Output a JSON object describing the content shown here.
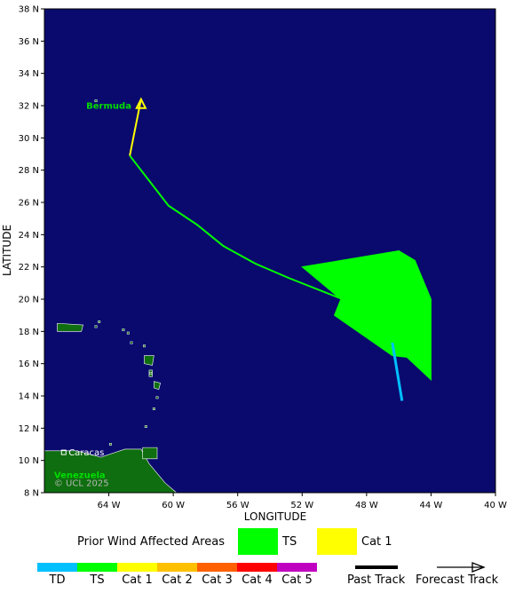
{
  "map": {
    "ocean_color": "#0a0a6e",
    "land_color": "#0f6e0f",
    "land_outline": "#ffffff",
    "lat_ticks": [
      "38 N",
      "36 N",
      "34 N",
      "32 N",
      "30 N",
      "28 N",
      "26 N",
      "24 N",
      "22 N",
      "20 N",
      "18 N",
      "16 N",
      "14 N",
      "12 N",
      "10 N",
      "8 N"
    ],
    "lon_ticks": [
      "64 W",
      "60 W",
      "56 W",
      "52 W",
      "48 W",
      "44 W",
      "40 W"
    ],
    "xlabel": "LONGITUDE",
    "ylabel": "LATITUDE",
    "places": {
      "bermuda": "Bermuda",
      "caracas": "Caracas",
      "venezuela": "Venezuela"
    },
    "copyright": "© UCL 2025",
    "track": {
      "td_segment": [
        [
          -45.8,
          13.7
        ],
        [
          -46.4,
          17.3
        ]
      ],
      "ts_segment": [
        [
          -46.4,
          17.3
        ],
        [
          -47.6,
          19.4
        ],
        [
          -49.5,
          20.0
        ],
        [
          -52.8,
          21.3
        ],
        [
          -54.9,
          22.2
        ],
        [
          -56.9,
          23.3
        ],
        [
          -58.5,
          24.6
        ],
        [
          -60.3,
          25.8
        ],
        [
          -62.7,
          28.9
        ]
      ],
      "cat1_segment": [
        [
          -62.7,
          28.9
        ],
        [
          -62.0,
          32.4
        ]
      ]
    },
    "affected_ts_polygon": [
      [
        -52.0,
        22.0
      ],
      [
        -46.0,
        23.0
      ],
      [
        -45.0,
        22.4
      ],
      [
        -44.0,
        20.0
      ],
      [
        -44.0,
        15.0
      ],
      [
        -45.5,
        16.4
      ],
      [
        -46.4,
        16.5
      ],
      [
        -50.0,
        19.0
      ],
      [
        -49.6,
        20.0
      ],
      [
        -52.0,
        22.0
      ]
    ]
  },
  "legend": {
    "title": "Prior Wind Affected Areas",
    "affected": [
      {
        "label": "TS",
        "color": "#00ff00"
      },
      {
        "label": "Cat 1",
        "color": "#ffff00"
      }
    ],
    "scale": [
      {
        "label": "TD",
        "color": "#00c0ff"
      },
      {
        "label": "TS",
        "color": "#00ff00"
      },
      {
        "label": "Cat 1",
        "color": "#ffff00"
      },
      {
        "label": "Cat 2",
        "color": "#ffc000"
      },
      {
        "label": "Cat 3",
        "color": "#ff6000"
      },
      {
        "label": "Cat 4",
        "color": "#ff0000"
      },
      {
        "label": "Cat 5",
        "color": "#c000c0"
      }
    ],
    "past_track": "Past Track",
    "forecast_track": "Forecast Track"
  }
}
